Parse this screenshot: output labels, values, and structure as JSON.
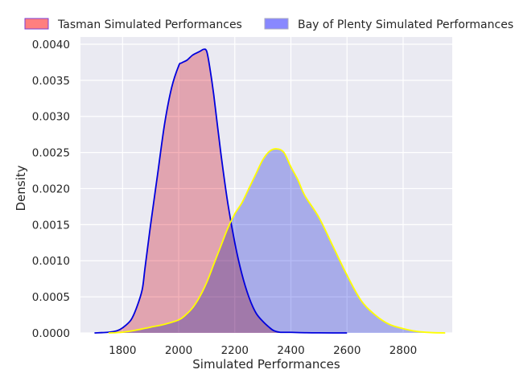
{
  "chart_data": {
    "type": "area",
    "xlabel": "Simulated Performances",
    "ylabel": "Density",
    "xlim": [
      1650,
      2975
    ],
    "ylim": [
      0,
      0.0041
    ],
    "xticks": [
      1800,
      2000,
      2200,
      2400,
      2600,
      2800
    ],
    "xtick_labels": [
      "1800",
      "2000",
      "2200",
      "2400",
      "2600",
      "2800"
    ],
    "yticks": [
      0,
      0.0005,
      0.001,
      0.0015,
      0.002,
      0.0025,
      0.003,
      0.0035,
      0.004
    ],
    "ytick_labels": [
      "0.0000",
      "0.0005",
      "0.0010",
      "0.0015",
      "0.0020",
      "0.0025",
      "0.0030",
      "0.0035",
      "0.0040"
    ],
    "grid": true,
    "legend_position": "top",
    "series": [
      {
        "name": "Tasman Simulated Performances",
        "fill_color": "#f4a6ae",
        "line_color": "#0000dd",
        "legend_color": "#ff7f7f",
        "x": [
          1700,
          1750,
          1780,
          1800,
          1830,
          1850,
          1870,
          1880,
          1900,
          1925,
          1950,
          1975,
          2000,
          2010,
          2030,
          2050,
          2075,
          2090,
          2100,
          2110,
          2125,
          2150,
          2175,
          2200,
          2225,
          2250,
          2275,
          2300,
          2325,
          2340,
          2360,
          2400,
          2450,
          2500,
          2550,
          2600
        ],
        "y": [
          0.0,
          1e-05,
          3e-05,
          7e-05,
          0.00018,
          0.00035,
          0.0006,
          0.0009,
          0.0015,
          0.0022,
          0.0029,
          0.0034,
          0.0037,
          0.00374,
          0.00378,
          0.00385,
          0.0039,
          0.00393,
          0.0039,
          0.0037,
          0.0033,
          0.0025,
          0.0018,
          0.00125,
          0.00082,
          0.0005,
          0.00028,
          0.00016,
          7e-05,
          3e-05,
          1e-05,
          8e-06,
          3e-06,
          1e-06,
          0.0,
          0.0
        ]
      },
      {
        "name": "Bay of Plenty Simulated Performances",
        "fill_color": "#aab0f5",
        "line_color": "#ffff00",
        "legend_color": "#8888ff",
        "x": [
          1750,
          1800,
          1850,
          1900,
          1950,
          2000,
          2025,
          2050,
          2075,
          2100,
          2125,
          2150,
          2175,
          2200,
          2225,
          2250,
          2275,
          2300,
          2325,
          2350,
          2375,
          2400,
          2425,
          2450,
          2500,
          2550,
          2600,
          2650,
          2700,
          2750,
          2800,
          2850,
          2900,
          2950
        ],
        "y": [
          0.0,
          1e-05,
          4e-05,
          8e-05,
          0.00012,
          0.00018,
          0.00025,
          0.00035,
          0.0005,
          0.0007,
          0.00095,
          0.0012,
          0.00145,
          0.00165,
          0.0018,
          0.002,
          0.0022,
          0.0024,
          0.00252,
          0.00255,
          0.0025,
          0.0023,
          0.00212,
          0.0019,
          0.0016,
          0.0012,
          0.0008,
          0.00045,
          0.00025,
          0.00012,
          6e-05,
          2e-05,
          5e-06,
          0.0
        ]
      }
    ]
  }
}
